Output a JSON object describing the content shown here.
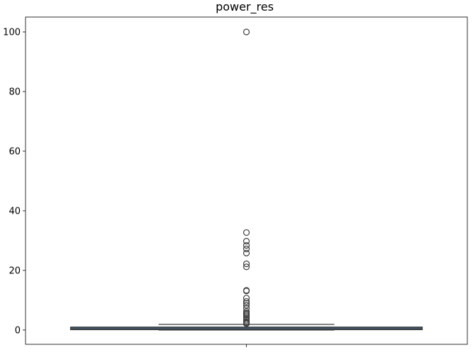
{
  "chart_data": {
    "type": "boxplot",
    "title": "power_res",
    "xlabel": "",
    "ylabel": "",
    "ylim": [
      -4.8,
      105
    ],
    "y_ticks": [
      0,
      20,
      40,
      60,
      80,
      100
    ],
    "y_tick_labels": [
      "0",
      "20",
      "40",
      "60",
      "80",
      "100"
    ],
    "x_ticks": [
      0
    ],
    "x_tick_labels": [
      ""
    ],
    "grid": false,
    "box": {
      "position": 0,
      "q1": 0.1,
      "median": 0.3,
      "q3": 1.0,
      "whisker_low": 0.0,
      "whisker_high": 1.9,
      "fill_color": "#3f5870",
      "line_color": "#3f3f3f"
    },
    "outliers": [
      100,
      32.7,
      29.8,
      28.4,
      27.2,
      25.8,
      22.2,
      21.2,
      13.3,
      13.1,
      10.7,
      9.6,
      9.0,
      8.3,
      7.3,
      6.2,
      5.7,
      5.4,
      5.0,
      4.5,
      3.9,
      3.3,
      2.8,
      2.4,
      2.1
    ]
  }
}
